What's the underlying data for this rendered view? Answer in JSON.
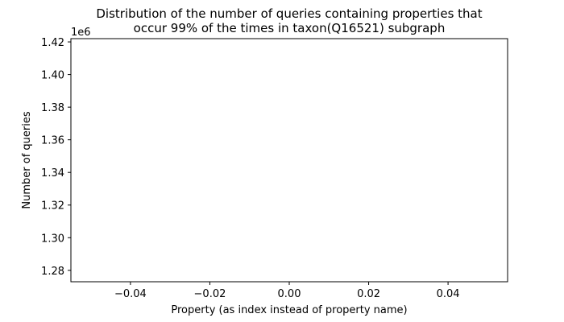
{
  "chart_data": {
    "type": "bar",
    "title": [
      "Distribution of the number of queries containing properties that",
      "occur 99% of the times in taxon(Q16521) subgraph"
    ],
    "xlabel": "Property (as index instead of property name)",
    "ylabel": "Number of queries",
    "y_offset_label": "1e6",
    "xlim": [
      -0.055,
      0.055
    ],
    "ylim": [
      1.273,
      1.422
    ],
    "x_ticks": [
      -0.04,
      -0.02,
      0.0,
      0.02,
      0.04
    ],
    "x_tick_labels": [
      "−0.04",
      "−0.02",
      "0.00",
      "0.02",
      "0.04"
    ],
    "y_ticks": [
      1.28,
      1.3,
      1.32,
      1.34,
      1.36,
      1.38,
      1.4,
      1.42
    ],
    "y_tick_labels": [
      "1.28",
      "1.30",
      "1.32",
      "1.34",
      "1.36",
      "1.38",
      "1.40",
      "1.42"
    ],
    "categories": [],
    "values": [],
    "grid": false,
    "legend": "none",
    "colors": {
      "axes": "#000000",
      "background": "#ffffff"
    }
  }
}
